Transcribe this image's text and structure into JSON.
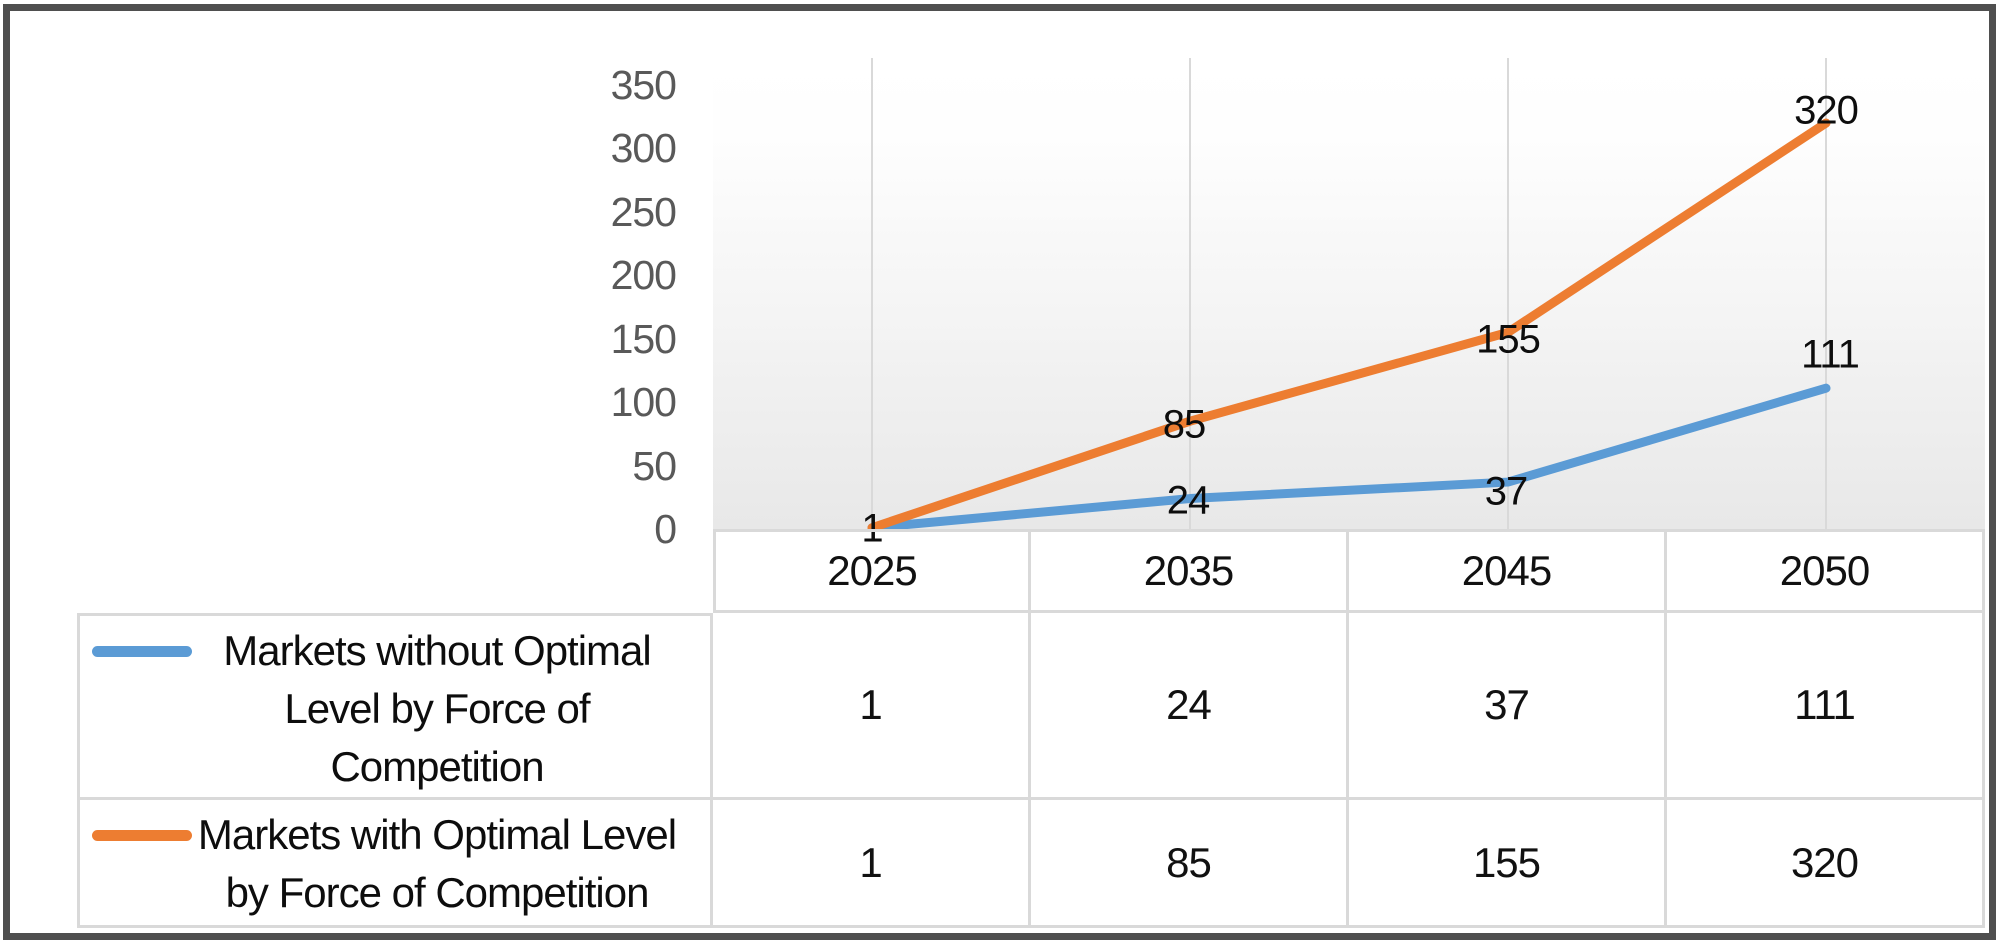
{
  "chart_data": {
    "type": "line",
    "categories": [
      "2025",
      "2035",
      "2045",
      "2050"
    ],
    "series": [
      {
        "name": "Markets without Optimal Level by Force of Competition",
        "name_lines": [
          "Markets without Optimal",
          "Level by Force of",
          "Competition"
        ],
        "values": [
          1,
          24,
          37,
          111
        ],
        "point_labels": [
          "1",
          "24",
          "37",
          "111"
        ],
        "color": "#5B9BD5"
      },
      {
        "name": "Markets with Optimal Level by Force of Competition",
        "name_lines": [
          "Markets with Optimal Level",
          "by Force of Competition"
        ],
        "values": [
          1,
          85,
          155,
          320
        ],
        "point_labels": [
          "1",
          "85",
          "155",
          "320"
        ],
        "color": "#ED7D31"
      }
    ],
    "y_axis": {
      "ticks": [
        350,
        300,
        250,
        200,
        150,
        100,
        50,
        0
      ],
      "min": 0,
      "max": 350
    },
    "x_axis": {
      "labels": [
        "2025",
        "2035",
        "2045",
        "2050"
      ]
    },
    "data_labels_shown": true,
    "legend_position": "left-of-data-table",
    "gridlines": "vertical",
    "title": "",
    "colors": {
      "gridline": "#d9d9d9",
      "axis_text": "#595959",
      "label_text": "#0d0d0d",
      "frame": "#4f4f4f",
      "plot_fill_top": "#ffffff",
      "plot_fill_bottom": "#e8e8e8"
    }
  }
}
